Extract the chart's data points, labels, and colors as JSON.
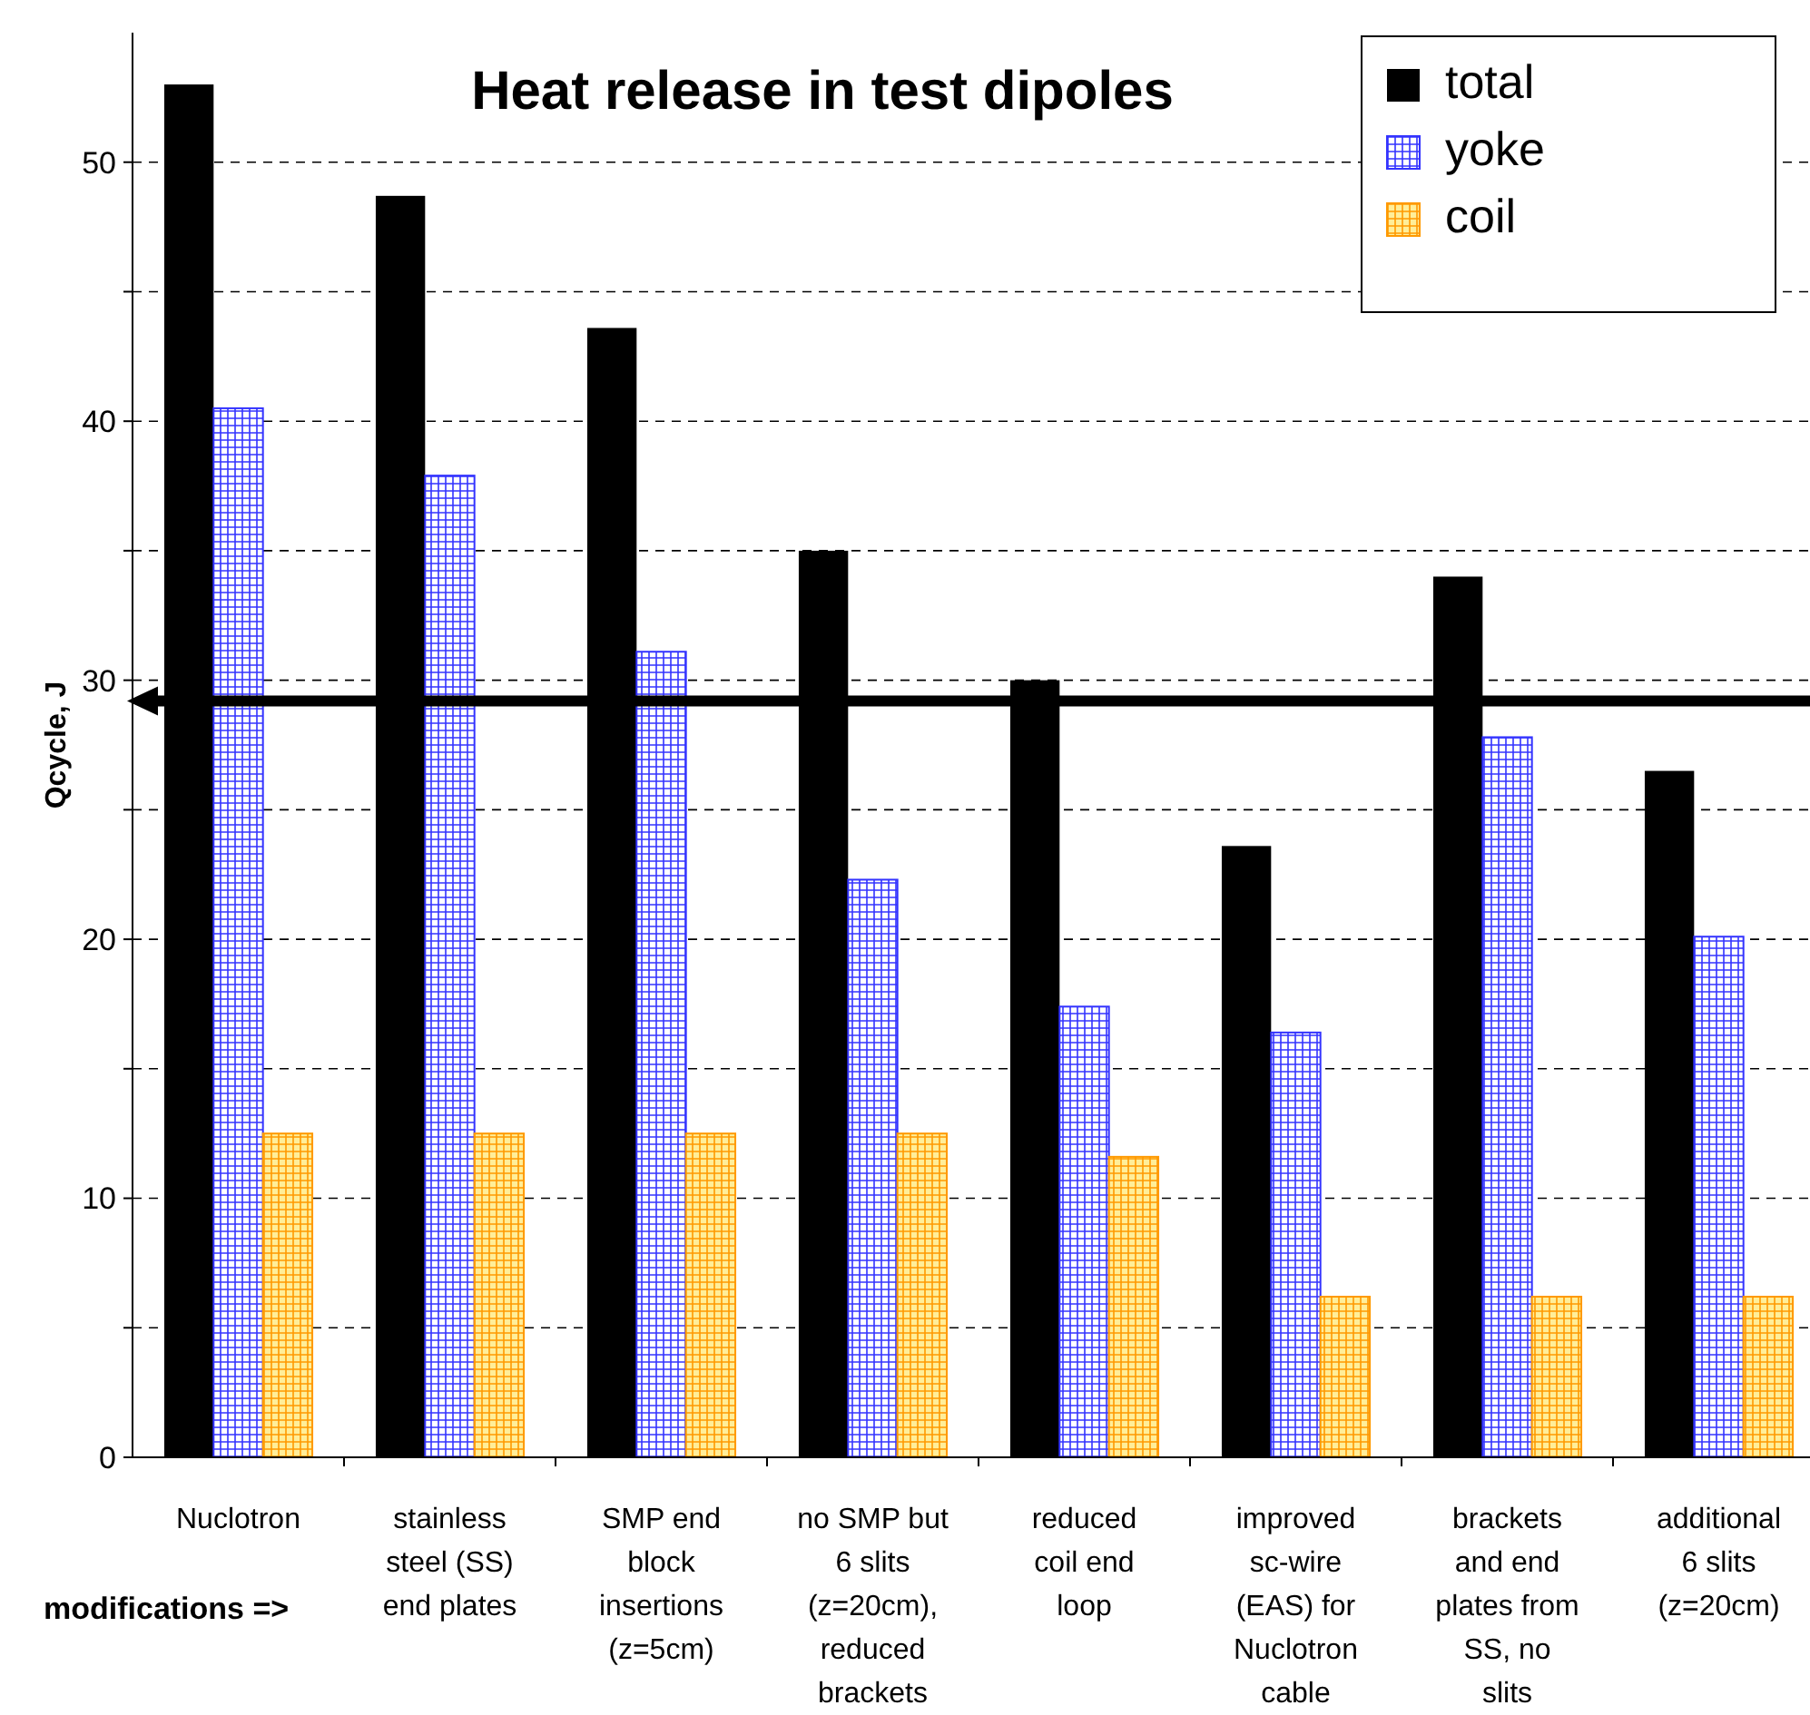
{
  "chart_data": {
    "type": "bar",
    "title": "Heat release in test dipoles",
    "ylabel": "Qcycle, J",
    "categories": [
      "Nuclotron",
      "stainless steel (SS) end plates",
      "SMP end block insertions (z=5cm)",
      "no SMP but 6 slits (z=20cm), reduced brackets",
      "reduced coil end loop",
      "improved sc-wire (EAS) for Nuclotron cable",
      "brackets and end plates from SS, no slits",
      "additional 6 slits (z=20cm)"
    ],
    "series": [
      {
        "name": "total",
        "color": "#000000",
        "values": [
          53,
          48.7,
          43.6,
          35,
          30,
          23.6,
          34,
          26.5
        ]
      },
      {
        "name": "yoke",
        "color": "#3333ff",
        "values": [
          40.5,
          37.9,
          31.1,
          22.3,
          17.4,
          16.4,
          27.8,
          20.1
        ]
      },
      {
        "name": "coil",
        "color": "#ff9900",
        "values": [
          12.5,
          12.5,
          12.5,
          12.5,
          11.6,
          6.2,
          6.2,
          6.2
        ]
      }
    ],
    "ylim": [
      0,
      55
    ],
    "yticks": [
      0,
      {
        "value": 5,
        "label": null
      },
      10,
      {
        "value": 15,
        "label": null
      },
      20,
      {
        "value": 25,
        "label": null
      },
      30,
      {
        "value": 35,
        "label": null
      },
      40,
      {
        "value": 45,
        "label": null
      },
      50
    ],
    "grid": "y",
    "legend": "top right",
    "ref_lines": [
      {
        "axis": "y",
        "value": 29.2,
        "color": "#000000"
      }
    ],
    "annotations": [
      "modifications =>"
    ]
  }
}
